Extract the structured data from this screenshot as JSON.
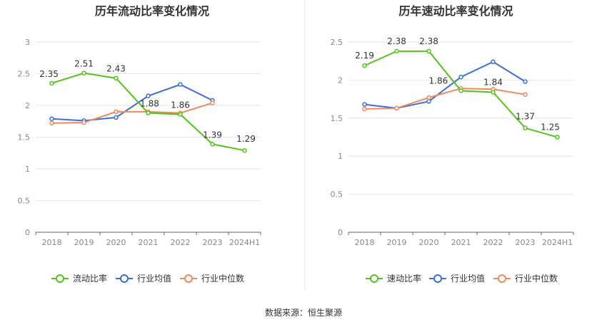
{
  "source": "数据来源：恒生聚源",
  "chart_data": [
    {
      "type": "line",
      "title": "历年流动比率变化情况",
      "categories": [
        "2018",
        "2019",
        "2020",
        "2021",
        "2022",
        "2023",
        "2024H1"
      ],
      "ylim": [
        0,
        3
      ],
      "yticks": [
        "0",
        "0.5",
        "1",
        "1.5",
        "2",
        "2.5",
        "3"
      ],
      "grid": true,
      "legend_position": "bottom",
      "series": [
        {
          "name": "流动比率",
          "color": "#52c41a",
          "values": [
            2.35,
            2.51,
            2.43,
            1.88,
            1.86,
            1.39,
            1.29
          ],
          "labels": [
            "2.35",
            "2.51",
            "2.43",
            "1.88",
            "1.86",
            "1.39",
            "1.29"
          ]
        },
        {
          "name": "行业均值",
          "color": "#3b6fd8",
          "values": [
            1.79,
            1.76,
            1.81,
            2.15,
            2.33,
            2.08,
            null
          ]
        },
        {
          "name": "行业中位数",
          "color": "#f08a5d",
          "values": [
            1.72,
            1.73,
            1.9,
            1.9,
            1.88,
            2.04,
            null
          ]
        }
      ]
    },
    {
      "type": "line",
      "title": "历年速动比率变化情况",
      "categories": [
        "2018",
        "2019",
        "2020",
        "2021",
        "2022",
        "2023",
        "2024H1"
      ],
      "ylim": [
        0,
        2.5
      ],
      "yticks": [
        "0",
        "0.5",
        "1",
        "1.5",
        "2",
        "2.5"
      ],
      "grid": true,
      "legend_position": "bottom",
      "series": [
        {
          "name": "速动比率",
          "color": "#52c41a",
          "values": [
            2.19,
            2.38,
            2.38,
            1.86,
            1.84,
            1.37,
            1.25
          ],
          "labels": [
            "2.19",
            "2.38",
            "2.38",
            "1.86",
            "1.84",
            "1.37",
            "1.25"
          ]
        },
        {
          "name": "行业均值",
          "color": "#3b6fd8",
          "values": [
            1.68,
            1.63,
            1.72,
            2.04,
            2.24,
            1.98,
            null
          ]
        },
        {
          "name": "行业中位数",
          "color": "#f08a5d",
          "values": [
            1.62,
            1.63,
            1.77,
            1.89,
            1.88,
            1.81,
            null
          ]
        }
      ]
    }
  ]
}
